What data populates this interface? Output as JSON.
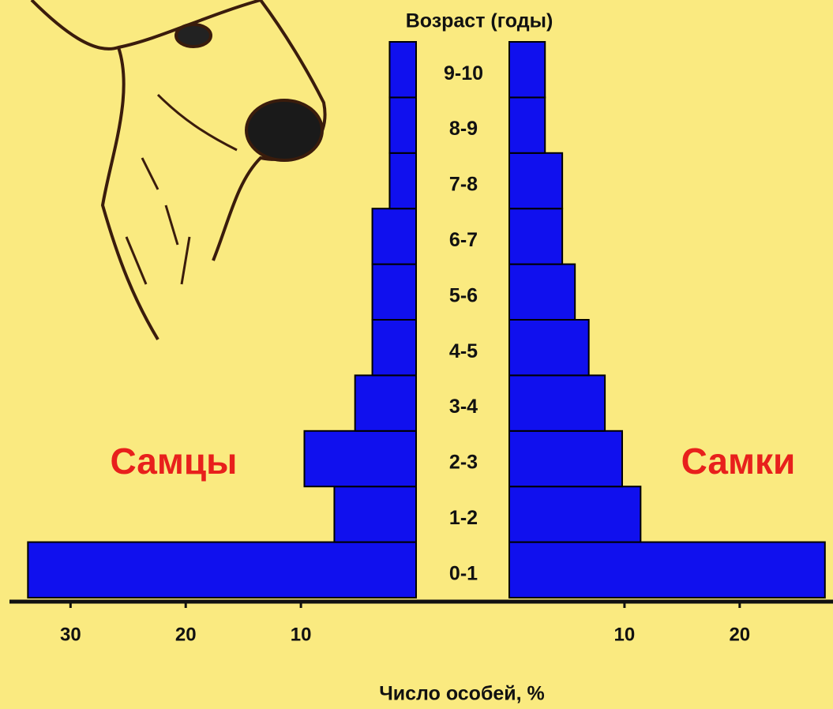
{
  "chart_data": {
    "type": "pyramid",
    "title": "Возраст (годы)",
    "x_label": "Число особей, %",
    "categories": [
      "0-1",
      "1-2",
      "2-3",
      "3-4",
      "4-5",
      "5-6",
      "6-7",
      "7-8",
      "8-9",
      "9-10"
    ],
    "series": [
      {
        "name": "Самцы",
        "color": "#1010ee",
        "label_color": "#e8201c",
        "side": "left",
        "values": [
          33.7,
          7.1,
          9.7,
          5.3,
          3.8,
          3.8,
          3.8,
          2.3,
          2.3,
          2.3
        ],
        "xlim": [
          0,
          35.3
        ],
        "xticks": [
          10,
          20,
          30
        ]
      },
      {
        "name": "Самки",
        "color": "#1010ee",
        "label_color": "#e8201c",
        "side": "right",
        "values": [
          27.4,
          11.4,
          9.8,
          8.3,
          6.9,
          5.7,
          4.6,
          4.6,
          3.1,
          3.1
        ],
        "xlim": [
          0,
          28.1
        ],
        "xticks": [
          10,
          20
        ]
      }
    ]
  }
}
